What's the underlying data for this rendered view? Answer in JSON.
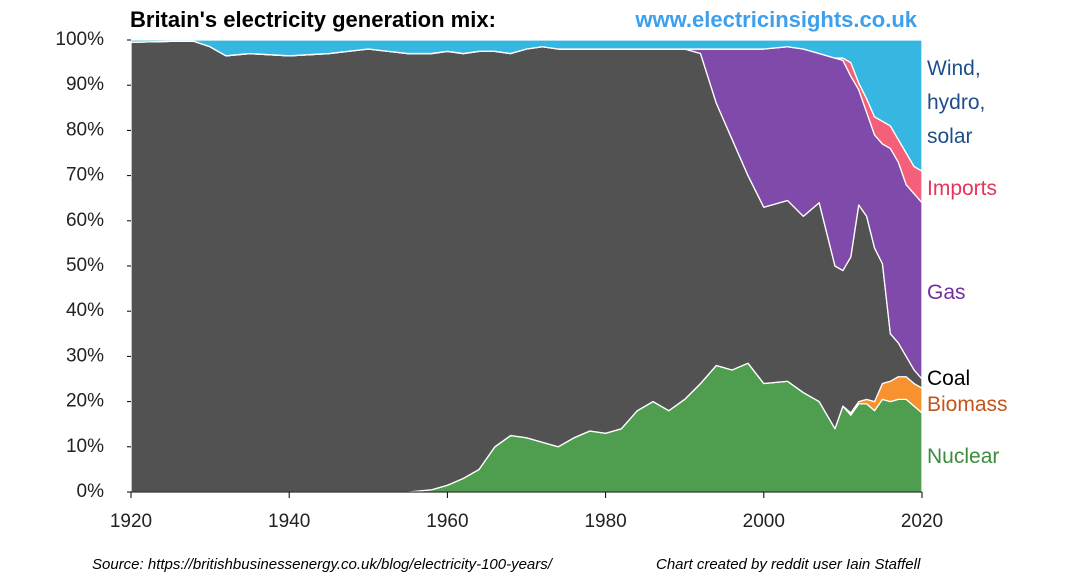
{
  "chart_data": {
    "type": "stacked-area",
    "title": "Britain's electricity generation mix:",
    "subtitle": "www.electricinsights.co.uk",
    "source": "Source: https://britishbusinessenergy.co.uk/blog/electricity-100-years/",
    "credit": "Chart created by reddit user Iain Staffell",
    "x": [
      1920,
      1925,
      1928,
      1930,
      1932,
      1935,
      1940,
      1945,
      1950,
      1955,
      1958,
      1960,
      1962,
      1964,
      1966,
      1968,
      1970,
      1972,
      1974,
      1976,
      1978,
      1980,
      1982,
      1984,
      1986,
      1988,
      1990,
      1992,
      1994,
      1996,
      1998,
      2000,
      2003,
      2005,
      2007,
      2009,
      2010,
      2011,
      2012,
      2013,
      2014,
      2015,
      2016,
      2017,
      2018,
      2019,
      2020
    ],
    "xlim": [
      1920,
      2020
    ],
    "xticks": [
      1920,
      1940,
      1960,
      1980,
      2000,
      2020
    ],
    "ylim": [
      0,
      100
    ],
    "yticks": [
      {
        "value": 0,
        "label": "0%"
      },
      {
        "value": 10,
        "label": "10%"
      },
      {
        "value": 20,
        "label": "20%"
      },
      {
        "value": 30,
        "label": "30%"
      },
      {
        "value": 40,
        "label": "40%"
      },
      {
        "value": 50,
        "label": "50%"
      },
      {
        "value": 60,
        "label": "60%"
      },
      {
        "value": 70,
        "label": "70%"
      },
      {
        "value": 80,
        "label": "80%"
      },
      {
        "value": 90,
        "label": "90%"
      },
      {
        "value": 100,
        "label": "100%"
      }
    ],
    "series": [
      {
        "name": "Nuclear",
        "color": "#4f9d4f",
        "label_color": "#3c8c3c",
        "values": [
          0,
          0,
          0,
          0,
          0,
          0,
          0,
          0,
          0,
          0,
          0.5,
          1.5,
          3,
          5,
          10,
          12.5,
          12,
          11,
          10,
          12,
          13.5,
          13,
          14,
          18,
          20,
          18,
          20.5,
          24,
          28,
          27,
          28.5,
          24,
          24.5,
          22,
          20,
          14,
          19,
          17,
          19.5,
          19.5,
          18,
          20.5,
          20,
          20.5,
          20.5,
          19,
          17.5
        ]
      },
      {
        "name": "Biomass",
        "color": "#f7922e",
        "label_color": "#c0561a",
        "values": [
          0,
          0,
          0,
          0,
          0,
          0,
          0,
          0,
          0,
          0,
          0,
          0,
          0,
          0,
          0,
          0,
          0,
          0,
          0,
          0,
          0,
          0,
          0,
          0,
          0,
          0,
          0,
          0,
          0,
          0,
          0,
          0,
          0,
          0,
          0,
          0,
          0,
          0.5,
          0.5,
          1,
          2,
          3.5,
          4.5,
          5,
          5,
          5,
          5.5
        ]
      },
      {
        "name": "Coal",
        "color": "#525252",
        "label_color": "#000000",
        "values": [
          99.5,
          99.7,
          99.7,
          98.5,
          96.5,
          97,
          96.5,
          97,
          98,
          97,
          96.5,
          96,
          94,
          92.5,
          87.5,
          84.5,
          86,
          87.5,
          88,
          86,
          84.5,
          85,
          84,
          80,
          78,
          80,
          77.5,
          73,
          58,
          51,
          41.5,
          39,
          40,
          39,
          44,
          36,
          30,
          34.5,
          43.5,
          40.5,
          34,
          26.5,
          10.5,
          7.5,
          4.5,
          3,
          2
        ]
      },
      {
        "name": "Gas",
        "color": "#7f4aa9",
        "label_color": "#7030a0",
        "values": [
          0,
          0,
          0,
          0,
          0,
          0,
          0,
          0,
          0,
          0,
          0,
          0,
          0,
          0,
          0,
          0,
          0,
          0,
          0,
          0,
          0,
          0,
          0,
          0,
          0,
          0,
          0,
          1,
          12,
          20,
          28,
          35,
          34,
          37,
          33,
          46,
          46.5,
          40,
          25.5,
          23,
          25,
          26.5,
          41,
          40,
          38,
          39,
          39
        ]
      },
      {
        "name": "Imports",
        "color": "#f4607a",
        "label_color": "#e8335a",
        "values": [
          0,
          0,
          0,
          0,
          0,
          0,
          0,
          0,
          0,
          0,
          0,
          0,
          0,
          0,
          0,
          0,
          0,
          0,
          0,
          0,
          0,
          0,
          0,
          0,
          0,
          0,
          0,
          0,
          0,
          0,
          0,
          0,
          0,
          0,
          0,
          0,
          0.5,
          3,
          1.5,
          3,
          4,
          5,
          5,
          5,
          7,
          6,
          7
        ]
      },
      {
        "name": "Wind, hydro, solar",
        "color": "#36b7e2",
        "label_color": "#1f4e8c",
        "values": [
          0.5,
          0.3,
          0.3,
          1.5,
          3.5,
          3,
          3.5,
          3,
          2,
          3,
          3,
          2.5,
          3,
          2.5,
          2.5,
          3,
          2,
          1.5,
          2,
          2,
          2,
          2,
          2,
          2,
          2,
          2,
          2,
          2,
          2,
          2,
          2,
          2,
          1.5,
          2,
          3,
          4,
          4,
          5,
          9.5,
          13,
          17,
          18,
          19,
          22,
          25,
          28,
          29
        ]
      }
    ]
  }
}
